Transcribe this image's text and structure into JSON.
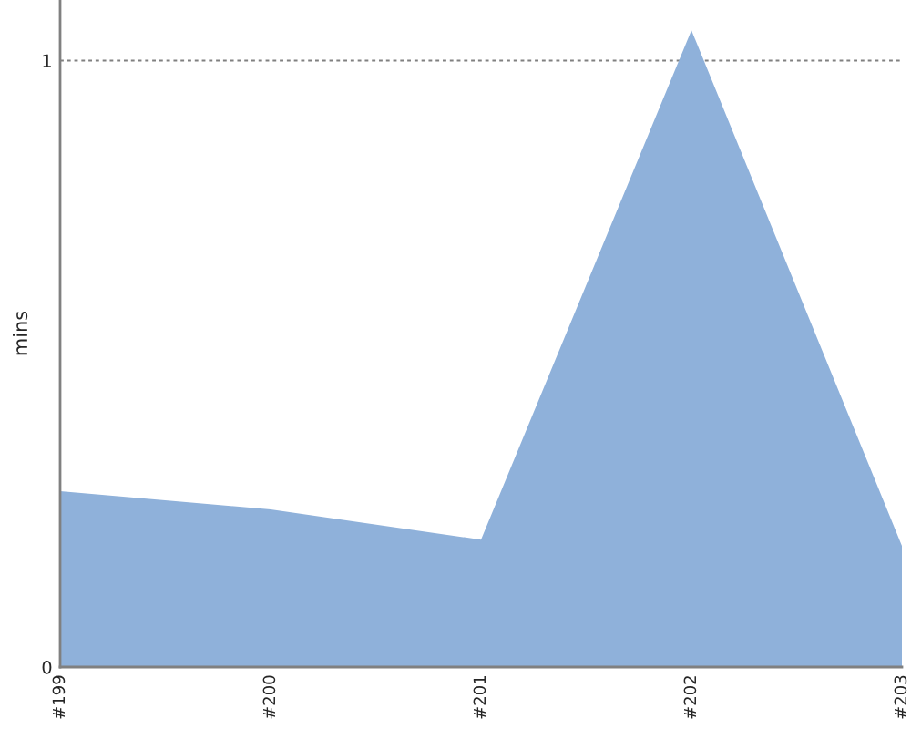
{
  "chart_data": {
    "type": "area",
    "ylabel": "mins",
    "categories": [
      "#199",
      "#200",
      "#201",
      "#202",
      "#203"
    ],
    "values": [
      0.29,
      0.26,
      0.21,
      1.05,
      0.2
    ],
    "color": "#8fb1da",
    "ylim": [
      0,
      1.1
    ],
    "yticks": [
      0,
      1
    ],
    "grid": "y"
  }
}
